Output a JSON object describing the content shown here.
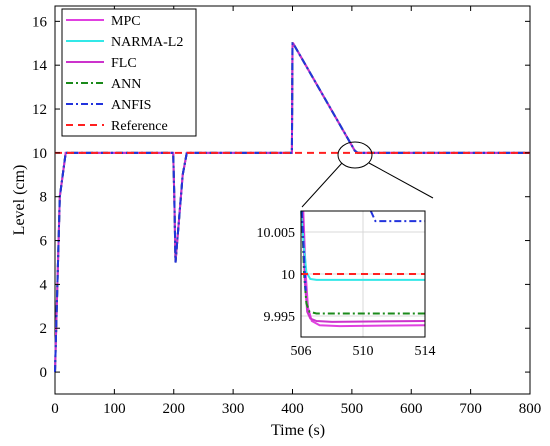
{
  "chart_data": {
    "type": "line",
    "xlabel": "Time (s)",
    "ylabel": "Level (cm)",
    "xlim": [
      0,
      800
    ],
    "ylim": [
      -1,
      16.7
    ],
    "xticks": [
      "0",
      "100",
      "200",
      "300",
      "400",
      "500",
      "600",
      "700",
      "800"
    ],
    "yticks": [
      "0",
      "2",
      "4",
      "6",
      "8",
      "10",
      "12",
      "14",
      "16"
    ],
    "grid": false,
    "legend_position": "top-left",
    "series": [
      {
        "name": "MPC",
        "color": "#e040e0",
        "dash": "solid",
        "x": [
          0,
          8,
          18,
          199,
          201,
          203,
          215,
          222,
          399,
          400,
          401,
          505,
          510,
          800
        ],
        "y": [
          0,
          8,
          10,
          10,
          8,
          5,
          9,
          10,
          10,
          15,
          15,
          10.1,
          10,
          10
        ]
      },
      {
        "name": "NARMA-L2",
        "color": "#33e8e8",
        "dash": "solid",
        "x": [
          0,
          8,
          18,
          199,
          201,
          203,
          215,
          222,
          399,
          400,
          401,
          505,
          510,
          800
        ],
        "y": [
          0,
          8,
          10,
          10,
          8,
          5,
          9,
          10,
          10,
          15,
          15,
          10.1,
          10,
          10
        ]
      },
      {
        "name": "FLC",
        "color": "#cc33cc",
        "dash": "solid",
        "x": [
          0,
          8,
          18,
          199,
          201,
          203,
          215,
          222,
          399,
          400,
          401,
          505,
          510,
          800
        ],
        "y": [
          0,
          8,
          10,
          10,
          8,
          5,
          9,
          10,
          10,
          15,
          15,
          10.1,
          10,
          10
        ]
      },
      {
        "name": "ANN",
        "color": "#1a8a1a",
        "dash": "dashdot",
        "x": [
          0,
          8,
          18,
          199,
          201,
          203,
          215,
          222,
          399,
          400,
          401,
          505,
          510,
          800
        ],
        "y": [
          0,
          8,
          10,
          10,
          8,
          5,
          9,
          10,
          10,
          15,
          15,
          10.1,
          10,
          10
        ]
      },
      {
        "name": "ANFIS",
        "color": "#2233dd",
        "dash": "dashdot",
        "x": [
          0,
          8,
          18,
          199,
          201,
          203,
          215,
          222,
          399,
          400,
          401,
          505,
          510,
          800
        ],
        "y": [
          0,
          8,
          10,
          10,
          8,
          5,
          9,
          10,
          10,
          15,
          15,
          10.1,
          10,
          10
        ]
      },
      {
        "name": "Reference",
        "color": "#ff2020",
        "dash": "dash",
        "x": [
          0,
          800
        ],
        "y": [
          10,
          10
        ]
      }
    ],
    "inset": {
      "xlim": [
        506,
        514
      ],
      "ylim": [
        9.9925,
        10.0075
      ],
      "xticks": [
        "506",
        "510",
        "514"
      ],
      "yticks": [
        "9.995",
        "10",
        "10.005"
      ],
      "grid": true,
      "series": [
        {
          "name": "MPC",
          "color": "#e040e0",
          "dash": "solid",
          "x": [
            506.15,
            506.3,
            506.45,
            506.7,
            507.2,
            508.5,
            514
          ],
          "y": [
            10.0075,
            10.0,
            9.996,
            9.9944,
            9.9939,
            9.9938,
            9.9939
          ]
        },
        {
          "name": "FLC",
          "color": "#cc33cc",
          "dash": "solid",
          "x": [
            506.1,
            506.25,
            506.4,
            506.6,
            507.0,
            508.0,
            514
          ],
          "y": [
            10.0075,
            9.999,
            9.9955,
            9.9947,
            9.9944,
            9.9943,
            9.9944
          ]
        },
        {
          "name": "NARMA-L2",
          "color": "#33e8e8",
          "dash": "solid",
          "x": [
            506.0,
            506.2,
            506.35,
            506.6,
            507.0,
            514
          ],
          "y": [
            10.0075,
            10.003,
            10.0002,
            9.9994,
            9.9993,
            9.9993
          ]
        },
        {
          "name": "ANN",
          "color": "#1a8a1a",
          "dash": "dashdot",
          "x": [
            506.05,
            506.2,
            506.35,
            506.55,
            507.0,
            514
          ],
          "y": [
            10.0075,
            10.0,
            9.9965,
            9.9955,
            9.9953,
            9.9953
          ]
        },
        {
          "name": "ANFIS",
          "color": "#2233dd",
          "dash": "dashdot",
          "x": [
            510.5,
            510.8,
            514
          ],
          "y": [
            10.0075,
            10.0063,
            10.0063
          ]
        },
        {
          "name": "ANFIS",
          "color": "#2233dd",
          "dash": "dashdot",
          "x": [
            506.05,
            506.15,
            506.3
          ],
          "y": [
            10.0075,
            10.004,
            9.998
          ]
        },
        {
          "name": "Reference",
          "color": "#ff2020",
          "dash": "dash",
          "x": [
            506,
            514
          ],
          "y": [
            10.0,
            10.0
          ]
        }
      ]
    }
  }
}
